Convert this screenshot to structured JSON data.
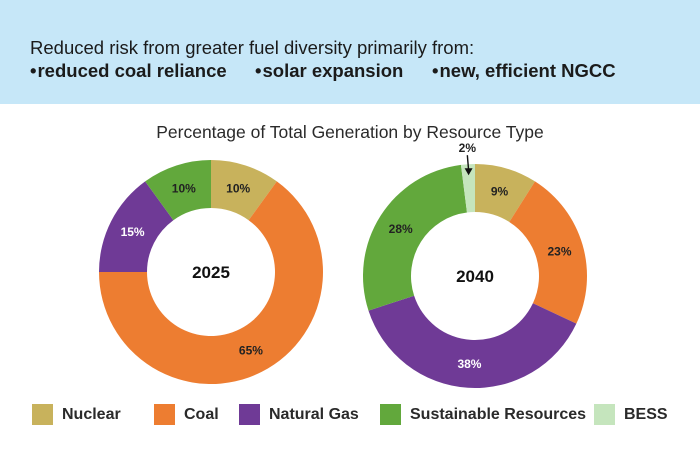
{
  "banner": {
    "headline": "Reduced risk from greater fuel diversity primarily from:",
    "bullets": [
      "reduced coal reliance",
      "solar expansion",
      "new, efficient NGCC"
    ],
    "background": "#c6e7f8"
  },
  "chart_data": {
    "type": "donut",
    "title": "Percentage of Total Generation by Resource Type",
    "categories": [
      "Nuclear",
      "Coal",
      "Natural Gas",
      "Sustainable Resources",
      "BESS"
    ],
    "colors": [
      "#c8b25c",
      "#ed7d31",
      "#6f3a96",
      "#62a83c",
      "#c5e5bd"
    ],
    "series": [
      {
        "name": "2025",
        "values": [
          10,
          65,
          15,
          10,
          0
        ],
        "labels": [
          "10%",
          "65%",
          "15%",
          "10%",
          ""
        ]
      },
      {
        "name": "2040",
        "values": [
          9,
          23,
          38,
          28,
          2
        ],
        "labels": [
          "9%",
          "23%",
          "38%",
          "28%",
          "2%"
        ]
      }
    ],
    "legend": "bottom"
  },
  "legend": [
    {
      "label": "Nuclear",
      "color": "#c8b25c"
    },
    {
      "label": "Coal",
      "color": "#ed7d31"
    },
    {
      "label": "Natural Gas",
      "color": "#6f3a96"
    },
    {
      "label": "Sustainable Resources",
      "color": "#62a83c"
    },
    {
      "label": "BESS",
      "color": "#c5e5bd"
    }
  ]
}
